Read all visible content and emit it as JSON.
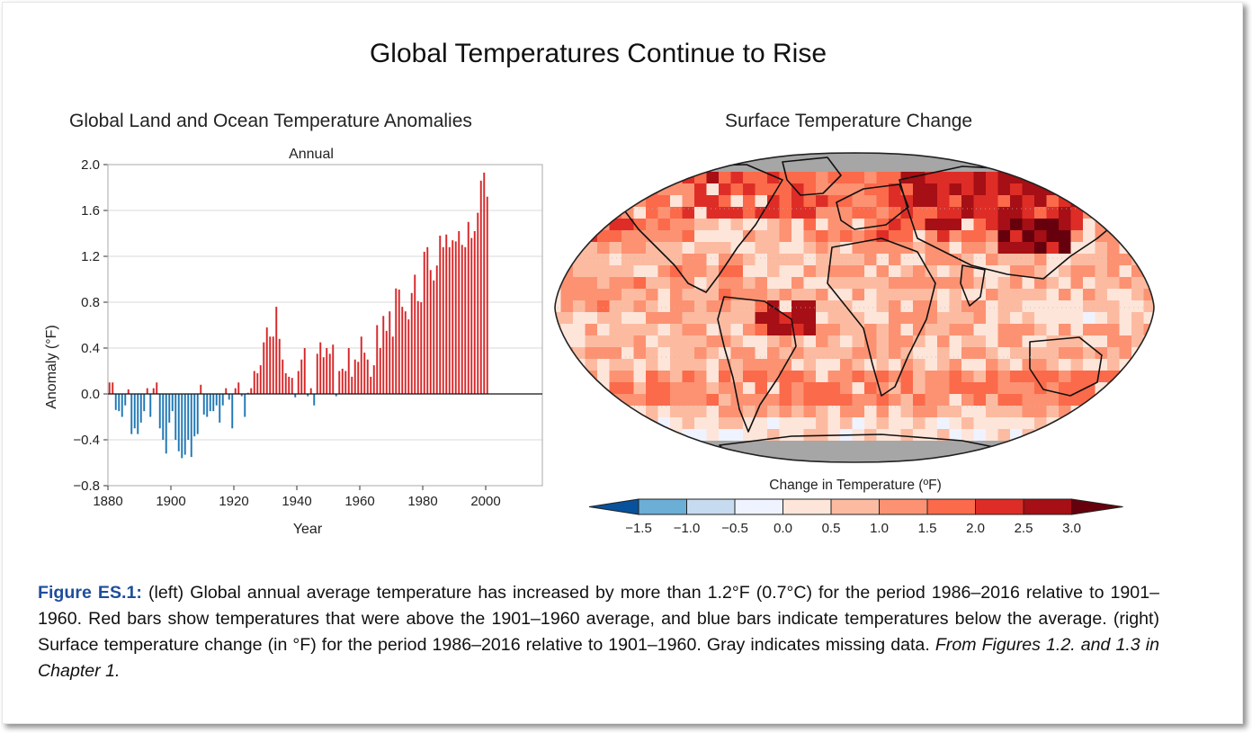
{
  "title": "Global Temperatures Continue to Rise",
  "caption": {
    "label": "Figure ES.1:",
    "body": " (left) Global annual average temperature has increased by more than 1.2°F (0.7°C) for the period 1986–2016 relative to 1901–1960. Red bars show temperatures that were above the 1901–1960 average, and blue bars indicate temperatures below the average. (right) Surface temperature change (in °F) for the period 1986–2016 relative to 1901–1960. Gray indicates missing data. ",
    "source": "From Figures 1.2. and 1.3 in Chapter 1."
  },
  "chart_data": [
    {
      "type": "bar",
      "title": "Global Land and Ocean Temperature Anomalies",
      "subtitle": "Annual",
      "xlabel": "Year",
      "ylabel": "Anomaly (°F)",
      "xlim": [
        1880,
        2018
      ],
      "ylim": [
        -0.8,
        2.0
      ],
      "x_ticks": [
        1880,
        1900,
        1920,
        1940,
        1960,
        1980,
        2000
      ],
      "y_ticks": [
        -0.8,
        -0.4,
        0.0,
        0.4,
        0.8,
        1.2,
        1.6,
        2.0
      ],
      "y_tick_labels": [
        "−0.8",
        "−0.4",
        "0.0",
        "0.4",
        "0.8",
        "1.2",
        "1.6",
        "2.0"
      ],
      "grid": true,
      "positive_color": "#d62728",
      "negative_color": "#1f77b4",
      "start_year": 1880,
      "values": [
        0.1,
        0.1,
        -0.14,
        -0.15,
        -0.2,
        -0.1,
        0.04,
        -0.35,
        -0.3,
        -0.35,
        -0.25,
        -0.15,
        0.05,
        -0.2,
        0.05,
        0.1,
        -0.3,
        -0.4,
        -0.52,
        -0.25,
        -0.15,
        -0.4,
        -0.5,
        -0.56,
        -0.53,
        -0.4,
        -0.55,
        -0.37,
        -0.35,
        0.08,
        -0.18,
        -0.2,
        -0.15,
        -0.15,
        -0.1,
        -0.25,
        -0.1,
        0.05,
        -0.05,
        -0.3,
        0.05,
        0.1,
        -0.02,
        -0.2,
        0.01,
        0.05,
        0.2,
        0.18,
        0.25,
        0.45,
        0.58,
        0.5,
        0.5,
        0.76,
        0.48,
        0.3,
        0.18,
        0.15,
        0.14,
        -0.03,
        0.2,
        0.3,
        0.4,
        -0.02,
        0.05,
        -0.1,
        0.35,
        0.45,
        0.32,
        0.4,
        0.35,
        0.43,
        -0.02,
        0.2,
        0.22,
        0.2,
        0.4,
        0.15,
        0.3,
        0.28,
        0.5,
        0.36,
        0.3,
        0.15,
        0.25,
        0.6,
        0.4,
        0.68,
        0.55,
        0.72,
        0.5,
        0.92,
        0.91,
        0.76,
        0.72,
        0.65,
        0.88,
        1.04,
        0.81,
        0.8,
        1.24,
        1.28,
        1.08,
        0.99,
        1.12,
        1.38,
        1.28,
        1.39,
        1.28,
        1.34,
        1.33,
        1.42,
        1.3,
        1.28,
        1.5,
        1.36,
        1.42,
        1.58,
        1.86,
        1.93,
        1.72
      ]
    },
    {
      "type": "heatmap",
      "title": "Surface Temperature Change",
      "legend_title": "Change in Temperature (ºF)",
      "legend_ticks": [
        "−1.5",
        "−1.0",
        "−0.5",
        "0.0",
        "0.5",
        "1.0",
        "1.5",
        "2.0",
        "2.5",
        "3.0"
      ],
      "legend_colors": [
        "#08519c",
        "#6baed6",
        "#c6dbef",
        "#eff3ff",
        "#fee5d9",
        "#fcbba1",
        "#fc9272",
        "#fb6a4a",
        "#de2d26",
        "#a50f15",
        "#67000d"
      ],
      "missing_color": "#a6a6a6",
      "projection": "Robinson"
    }
  ]
}
